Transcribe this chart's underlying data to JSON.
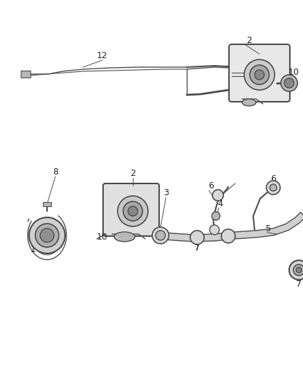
{
  "bg_color": "#ffffff",
  "line_color": "#4a4a4a",
  "fill_light": "#d8d8d8",
  "fill_mid": "#b8b8b8",
  "fill_dark": "#888888",
  "label_color": "#222222",
  "fig_width": 4.38,
  "fig_height": 5.33,
  "dpi": 100
}
